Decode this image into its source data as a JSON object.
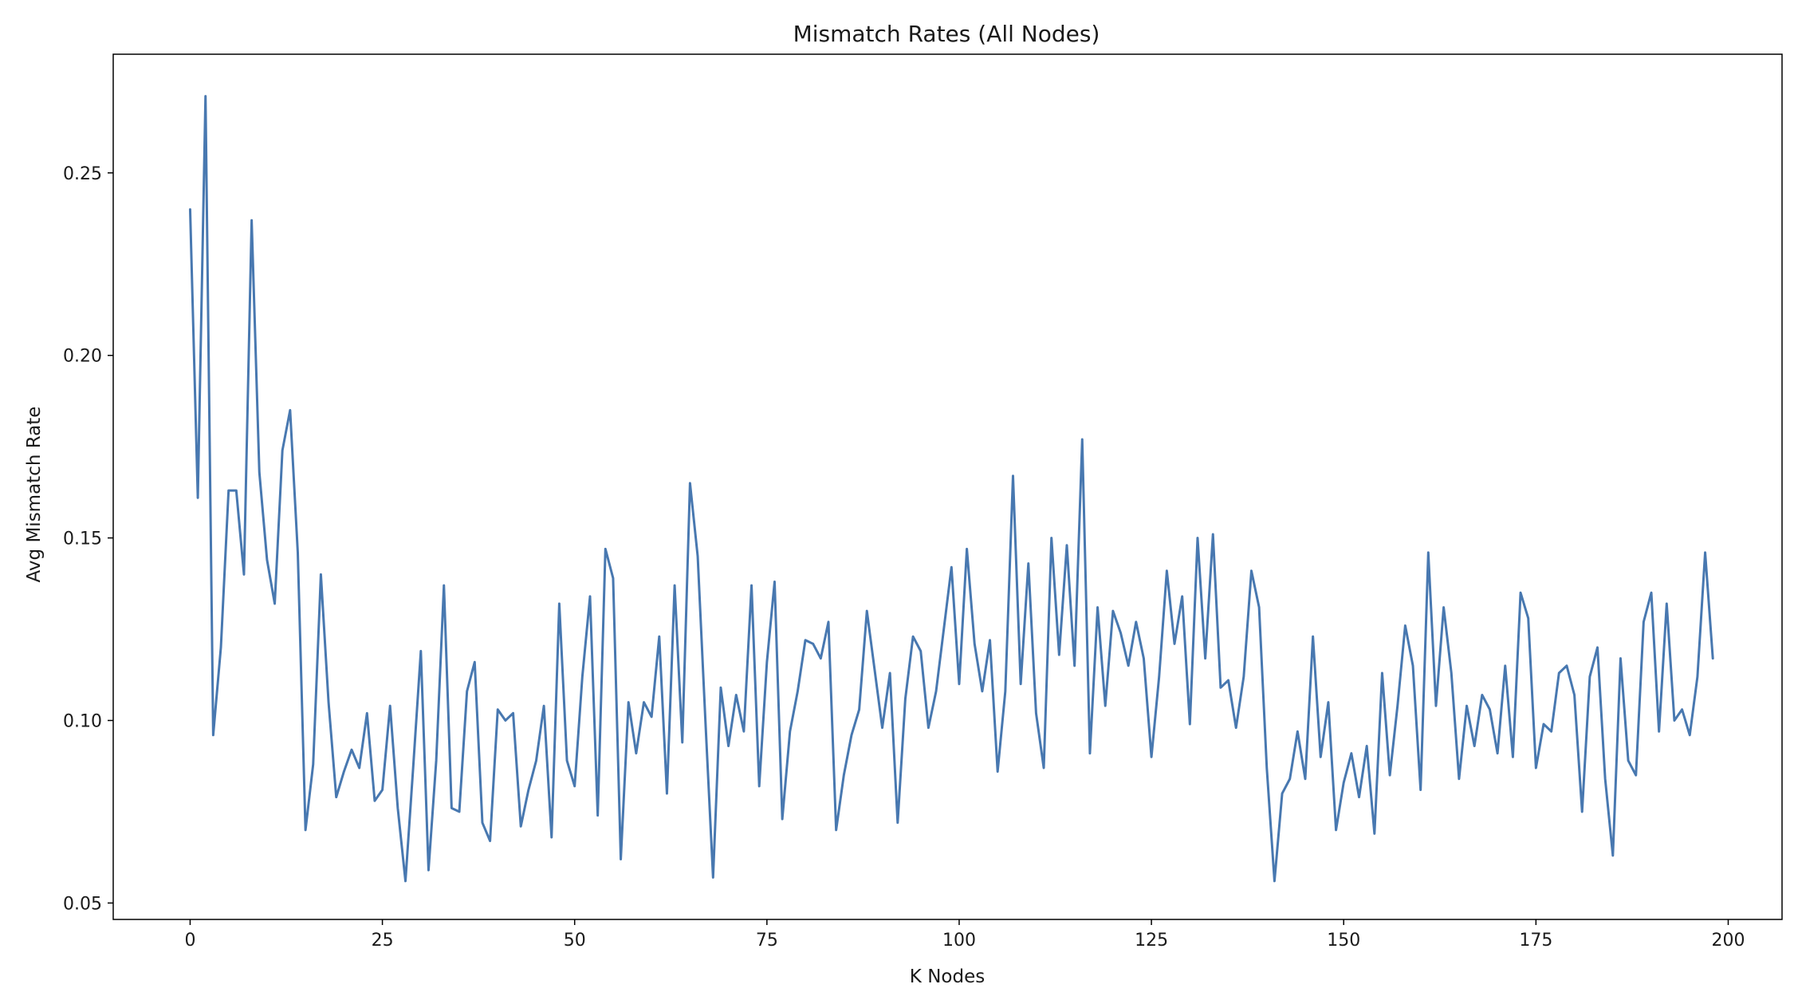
{
  "chart_data": {
    "type": "line",
    "title": "Mismatch Rates (All Nodes)",
    "xlabel": "K Nodes",
    "ylabel": "Avg Mismatch Rate",
    "xlim": [
      -10,
      207
    ],
    "ylim": [
      0.0455,
      0.2825
    ],
    "xticks": [
      0,
      25,
      50,
      75,
      100,
      125,
      150,
      175,
      200
    ],
    "yticks": [
      0.05,
      0.1,
      0.15,
      0.2,
      0.25
    ],
    "ytick_labels": [
      "0.05",
      "0.10",
      "0.15",
      "0.20",
      "0.25"
    ],
    "grid": false,
    "line_color": "#4878b0",
    "series": [
      {
        "x_start": 0,
        "x_step": 1,
        "values": [
          0.24,
          0.161,
          0.271,
          0.096,
          0.12,
          0.163,
          0.163,
          0.14,
          0.237,
          0.168,
          0.144,
          0.132,
          0.174,
          0.185,
          0.146,
          0.07,
          0.088,
          0.14,
          0.105,
          0.079,
          0.086,
          0.092,
          0.087,
          0.102,
          0.078,
          0.081,
          0.104,
          0.076,
          0.056,
          0.087,
          0.119,
          0.059,
          0.089,
          0.137,
          0.076,
          0.075,
          0.108,
          0.116,
          0.072,
          0.067,
          0.103,
          0.1,
          0.102,
          0.071,
          0.081,
          0.089,
          0.104,
          0.068,
          0.132,
          0.089,
          0.082,
          0.112,
          0.134,
          0.074,
          0.147,
          0.139,
          0.062,
          0.105,
          0.091,
          0.105,
          0.101,
          0.123,
          0.08,
          0.137,
          0.094,
          0.165,
          0.145,
          0.1,
          0.057,
          0.109,
          0.093,
          0.107,
          0.097,
          0.137,
          0.082,
          0.116,
          0.138,
          0.073,
          0.097,
          0.108,
          0.122,
          0.121,
          0.117,
          0.127,
          0.07,
          0.085,
          0.096,
          0.103,
          0.13,
          0.114,
          0.098,
          0.113,
          0.072,
          0.106,
          0.123,
          0.119,
          0.098,
          0.108,
          0.125,
          0.142,
          0.11,
          0.147,
          0.121,
          0.108,
          0.122,
          0.086,
          0.108,
          0.167,
          0.11,
          0.143,
          0.102,
          0.087,
          0.15,
          0.118,
          0.148,
          0.115,
          0.177,
          0.091,
          0.131,
          0.104,
          0.13,
          0.124,
          0.115,
          0.127,
          0.117,
          0.09,
          0.112,
          0.141,
          0.121,
          0.134,
          0.099,
          0.15,
          0.117,
          0.151,
          0.109,
          0.111,
          0.098,
          0.112,
          0.141,
          0.131,
          0.087,
          0.056,
          0.08,
          0.084,
          0.097,
          0.084,
          0.123,
          0.09,
          0.105,
          0.07,
          0.083,
          0.091,
          0.079,
          0.093,
          0.069,
          0.113,
          0.085,
          0.104,
          0.126,
          0.115,
          0.081,
          0.146,
          0.104,
          0.131,
          0.113,
          0.084,
          0.104,
          0.093,
          0.107,
          0.103,
          0.091,
          0.115,
          0.09,
          0.135,
          0.128,
          0.087,
          0.099,
          0.097,
          0.113,
          0.115,
          0.107,
          0.075,
          0.112,
          0.12,
          0.084,
          0.063,
          0.117,
          0.089,
          0.085,
          0.127,
          0.135,
          0.097,
          0.132,
          0.1,
          0.103,
          0.096,
          0.112,
          0.146,
          0.117
        ]
      }
    ]
  }
}
